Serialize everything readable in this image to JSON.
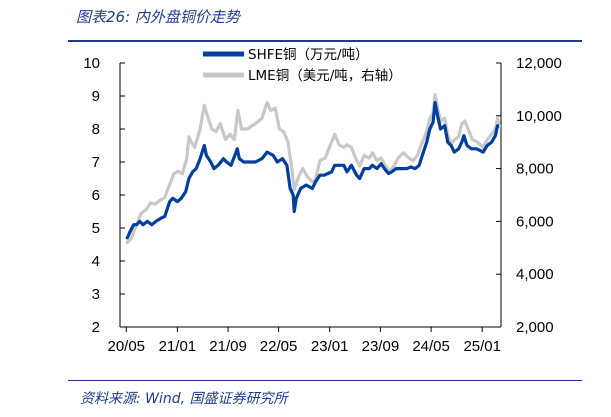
{
  "figure": {
    "title": "图表26:  内外盘铜价走势",
    "source": "资料来源:  Wind, 国盛证券研究所"
  },
  "colors": {
    "shfe": "#003f9e",
    "lme": "#c8c8c8",
    "rule": "#1f3c88"
  },
  "chart_data": {
    "type": "line",
    "title": "",
    "x_type": "date",
    "x_ticks": [
      "20/05",
      "21/01",
      "21/09",
      "22/05",
      "23/01",
      "23/09",
      "24/05",
      "25/01"
    ],
    "x_tick_dates": [
      "2020-05",
      "2021-01",
      "2021-09",
      "2022-05",
      "2023-01",
      "2023-09",
      "2024-05",
      "2025-01"
    ],
    "x_range": [
      "2020-04",
      "2025-04"
    ],
    "y_left": {
      "ticks": [
        "2",
        "3",
        "4",
        "5",
        "6",
        "7",
        "8",
        "9",
        "10"
      ],
      "range": [
        2,
        10
      ],
      "label": ""
    },
    "y_right": {
      "ticks": [
        "2,000",
        "4,000",
        "6,000",
        "8,000",
        "10,000",
        "12,000"
      ],
      "range": [
        2000,
        12000
      ],
      "label": ""
    },
    "legend_position": "top-left",
    "grid": false,
    "series": [
      {
        "name": "SHFE铜（万元/吨）",
        "axis": "left",
        "points": [
          [
            "2020-05-06",
            4.7
          ],
          [
            "2020-05-20",
            4.9
          ],
          [
            "2020-06-05",
            5.1
          ],
          [
            "2020-06-20",
            5.1
          ],
          [
            "2020-07-05",
            5.2
          ],
          [
            "2020-07-20",
            5.1
          ],
          [
            "2020-08-10",
            5.2
          ],
          [
            "2020-09-01",
            5.1
          ],
          [
            "2020-09-20",
            5.2
          ],
          [
            "2020-10-15",
            5.3
          ],
          [
            "2020-11-01",
            5.35
          ],
          [
            "2020-11-25",
            5.8
          ],
          [
            "2020-12-10",
            5.9
          ],
          [
            "2021-01-01",
            5.8
          ],
          [
            "2021-01-20",
            5.9
          ],
          [
            "2021-02-10",
            6.1
          ],
          [
            "2021-02-25",
            6.5
          ],
          [
            "2021-03-15",
            6.7
          ],
          [
            "2021-04-01",
            6.8
          ],
          [
            "2021-04-20",
            7.1
          ],
          [
            "2021-05-10",
            7.5
          ],
          [
            "2021-05-20",
            7.2
          ],
          [
            "2021-06-10",
            7.0
          ],
          [
            "2021-06-25",
            6.8
          ],
          [
            "2021-07-15",
            6.9
          ],
          [
            "2021-08-10",
            7.1
          ],
          [
            "2021-08-25",
            7.0
          ],
          [
            "2021-09-15",
            6.9
          ],
          [
            "2021-10-15",
            7.4
          ],
          [
            "2021-10-25",
            7.1
          ],
          [
            "2021-11-15",
            7.0
          ],
          [
            "2021-12-10",
            7.0
          ],
          [
            "2022-01-10",
            7.0
          ],
          [
            "2022-02-10",
            7.1
          ],
          [
            "2022-03-07",
            7.3
          ],
          [
            "2022-04-05",
            7.2
          ],
          [
            "2022-04-25",
            7.0
          ],
          [
            "2022-05-20",
            7.1
          ],
          [
            "2022-06-10",
            6.9
          ],
          [
            "2022-06-25",
            6.2
          ],
          [
            "2022-07-10",
            6.0
          ],
          [
            "2022-07-15",
            5.5
          ],
          [
            "2022-07-25",
            5.9
          ],
          [
            "2022-08-15",
            6.2
          ],
          [
            "2022-09-10",
            6.3
          ],
          [
            "2022-10-10",
            6.2
          ],
          [
            "2022-10-25",
            6.4
          ],
          [
            "2022-11-15",
            6.6
          ],
          [
            "2022-12-05",
            6.6
          ],
          [
            "2023-01-10",
            6.7
          ],
          [
            "2023-01-25",
            6.9
          ],
          [
            "2023-02-15",
            6.9
          ],
          [
            "2023-03-10",
            6.9
          ],
          [
            "2023-03-25",
            6.7
          ],
          [
            "2023-04-15",
            6.9
          ],
          [
            "2023-05-10",
            6.6
          ],
          [
            "2023-05-25",
            6.5
          ],
          [
            "2023-06-15",
            6.8
          ],
          [
            "2023-07-10",
            6.8
          ],
          [
            "2023-07-25",
            6.9
          ],
          [
            "2023-08-15",
            6.8
          ],
          [
            "2023-09-05",
            6.95
          ],
          [
            "2023-09-20",
            6.8
          ],
          [
            "2023-10-10",
            6.65
          ],
          [
            "2023-10-25",
            6.7
          ],
          [
            "2023-11-15",
            6.8
          ],
          [
            "2023-12-05",
            6.8
          ],
          [
            "2024-01-05",
            6.8
          ],
          [
            "2024-01-25",
            6.85
          ],
          [
            "2024-02-15",
            6.8
          ],
          [
            "2024-03-05",
            6.9
          ],
          [
            "2024-03-20",
            7.2
          ],
          [
            "2024-04-10",
            7.6
          ],
          [
            "2024-04-25",
            8.0
          ],
          [
            "2024-05-10",
            8.2
          ],
          [
            "2024-05-20",
            8.8
          ],
          [
            "2024-06-01",
            8.4
          ],
          [
            "2024-06-15",
            8.0
          ],
          [
            "2024-07-05",
            8.1
          ],
          [
            "2024-07-20",
            7.6
          ],
          [
            "2024-08-05",
            7.5
          ],
          [
            "2024-08-20",
            7.3
          ],
          [
            "2024-09-10",
            7.4
          ],
          [
            "2024-09-25",
            7.6
          ],
          [
            "2024-10-05",
            7.8
          ],
          [
            "2024-10-20",
            7.5
          ],
          [
            "2024-11-10",
            7.4
          ],
          [
            "2024-12-05",
            7.4
          ],
          [
            "2025-01-05",
            7.3
          ],
          [
            "2025-01-25",
            7.5
          ],
          [
            "2025-02-15",
            7.6
          ],
          [
            "2025-03-05",
            7.8
          ],
          [
            "2025-03-15",
            8.1
          ]
        ]
      },
      {
        "name": "LME铜（美元/吨，右轴）",
        "axis": "right",
        "points": [
          [
            "2020-05-06",
            5200
          ],
          [
            "2020-05-25",
            5350
          ],
          [
            "2020-06-10",
            5700
          ],
          [
            "2020-06-25",
            5950
          ],
          [
            "2020-07-10",
            6300
          ],
          [
            "2020-08-05",
            6450
          ],
          [
            "2020-08-25",
            6700
          ],
          [
            "2020-09-15",
            6650
          ],
          [
            "2020-10-10",
            6800
          ],
          [
            "2020-11-01",
            6900
          ],
          [
            "2020-11-25",
            7400
          ],
          [
            "2020-12-15",
            7800
          ],
          [
            "2021-01-05",
            7900
          ],
          [
            "2021-01-25",
            7800
          ],
          [
            "2021-02-15",
            8400
          ],
          [
            "2021-02-25",
            9200
          ],
          [
            "2021-03-10",
            9000
          ],
          [
            "2021-03-25",
            8800
          ],
          [
            "2021-04-20",
            9500
          ],
          [
            "2021-05-10",
            10400
          ],
          [
            "2021-05-25",
            10000
          ],
          [
            "2021-06-15",
            9500
          ],
          [
            "2021-07-05",
            9400
          ],
          [
            "2021-07-25",
            9700
          ],
          [
            "2021-08-20",
            9100
          ],
          [
            "2021-09-10",
            9300
          ],
          [
            "2021-10-01",
            9100
          ],
          [
            "2021-10-18",
            10200
          ],
          [
            "2021-11-05",
            9500
          ],
          [
            "2021-12-01",
            9500
          ],
          [
            "2022-01-10",
            9700
          ],
          [
            "2022-02-10",
            9900
          ],
          [
            "2022-03-07",
            10500
          ],
          [
            "2022-03-25",
            10200
          ],
          [
            "2022-04-15",
            10300
          ],
          [
            "2022-05-05",
            9500
          ],
          [
            "2022-05-25",
            9400
          ],
          [
            "2022-06-15",
            9000
          ],
          [
            "2022-07-05",
            7900
          ],
          [
            "2022-07-15",
            7200
          ],
          [
            "2022-08-05",
            7700
          ],
          [
            "2022-08-25",
            8000
          ],
          [
            "2022-09-15",
            7700
          ],
          [
            "2022-10-10",
            7500
          ],
          [
            "2022-10-25",
            7600
          ],
          [
            "2022-11-15",
            8300
          ],
          [
            "2022-12-10",
            8400
          ],
          [
            "2023-01-10",
            9000
          ],
          [
            "2023-01-25",
            9300
          ],
          [
            "2023-02-15",
            8900
          ],
          [
            "2023-03-10",
            8800
          ],
          [
            "2023-03-25",
            8900
          ],
          [
            "2023-04-15",
            8800
          ],
          [
            "2023-05-10",
            8300
          ],
          [
            "2023-05-25",
            8100
          ],
          [
            "2023-06-15",
            8500
          ],
          [
            "2023-07-10",
            8400
          ],
          [
            "2023-07-25",
            8600
          ],
          [
            "2023-08-15",
            8300
          ],
          [
            "2023-09-05",
            8400
          ],
          [
            "2023-09-25",
            8100
          ],
          [
            "2023-10-15",
            7900
          ],
          [
            "2023-11-05",
            8100
          ],
          [
            "2023-11-25",
            8400
          ],
          [
            "2023-12-20",
            8600
          ],
          [
            "2024-01-15",
            8400
          ],
          [
            "2024-02-05",
            8300
          ],
          [
            "2024-02-25",
            8500
          ],
          [
            "2024-03-15",
            8900
          ],
          [
            "2024-04-10",
            9400
          ],
          [
            "2024-04-25",
            9900
          ],
          [
            "2024-05-10",
            10100
          ],
          [
            "2024-05-20",
            10800
          ],
          [
            "2024-06-01",
            10300
          ],
          [
            "2024-06-15",
            9800
          ],
          [
            "2024-07-05",
            9900
          ],
          [
            "2024-07-20",
            9300
          ],
          [
            "2024-08-05",
            8900
          ],
          [
            "2024-08-20",
            9100
          ],
          [
            "2024-09-10",
            9200
          ],
          [
            "2024-09-25",
            9700
          ],
          [
            "2024-10-10",
            9800
          ],
          [
            "2024-10-25",
            9500
          ],
          [
            "2024-11-15",
            9100
          ],
          [
            "2024-12-10",
            9000
          ],
          [
            "2025-01-05",
            8800
          ],
          [
            "2025-01-25",
            9100
          ],
          [
            "2025-02-15",
            9300
          ],
          [
            "2025-03-05",
            9500
          ],
          [
            "2025-03-15",
            9900
          ],
          [
            "2025-03-25",
            9600
          ]
        ]
      }
    ]
  }
}
